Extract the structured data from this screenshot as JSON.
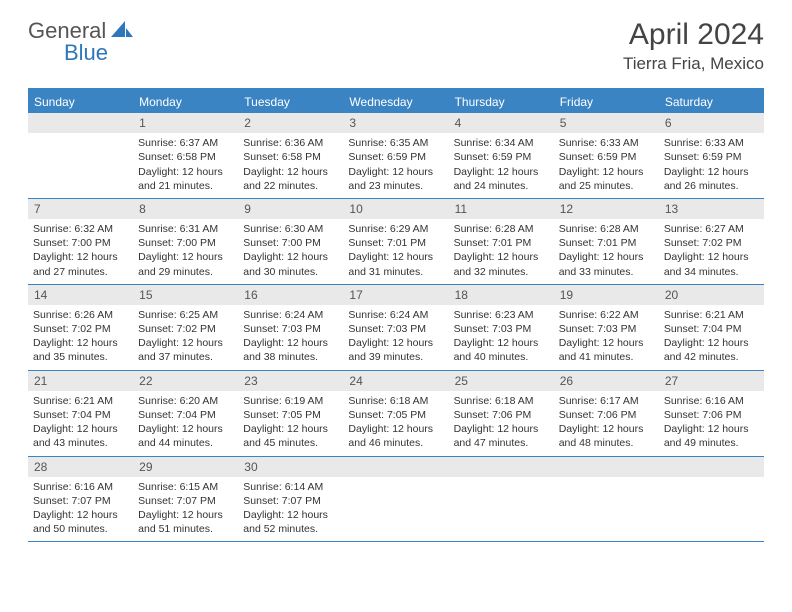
{
  "logo": {
    "text_general": "General",
    "text_blue": "Blue"
  },
  "title": "April 2024",
  "location": "Tierra Fria, Mexico",
  "weekdays": [
    "Sunday",
    "Monday",
    "Tuesday",
    "Wednesday",
    "Thursday",
    "Friday",
    "Saturday"
  ],
  "colors": {
    "header_bar": "#3b84c4",
    "daynum_bg": "#e9e9e9",
    "text": "#333333",
    "logo_blue": "#2f77bb"
  },
  "weeks": [
    [
      {
        "num": "",
        "sunrise": "",
        "sunset": "",
        "daylight": ""
      },
      {
        "num": "1",
        "sunrise": "Sunrise: 6:37 AM",
        "sunset": "Sunset: 6:58 PM",
        "daylight": "Daylight: 12 hours and 21 minutes."
      },
      {
        "num": "2",
        "sunrise": "Sunrise: 6:36 AM",
        "sunset": "Sunset: 6:58 PM",
        "daylight": "Daylight: 12 hours and 22 minutes."
      },
      {
        "num": "3",
        "sunrise": "Sunrise: 6:35 AM",
        "sunset": "Sunset: 6:59 PM",
        "daylight": "Daylight: 12 hours and 23 minutes."
      },
      {
        "num": "4",
        "sunrise": "Sunrise: 6:34 AM",
        "sunset": "Sunset: 6:59 PM",
        "daylight": "Daylight: 12 hours and 24 minutes."
      },
      {
        "num": "5",
        "sunrise": "Sunrise: 6:33 AM",
        "sunset": "Sunset: 6:59 PM",
        "daylight": "Daylight: 12 hours and 25 minutes."
      },
      {
        "num": "6",
        "sunrise": "Sunrise: 6:33 AM",
        "sunset": "Sunset: 6:59 PM",
        "daylight": "Daylight: 12 hours and 26 minutes."
      }
    ],
    [
      {
        "num": "7",
        "sunrise": "Sunrise: 6:32 AM",
        "sunset": "Sunset: 7:00 PM",
        "daylight": "Daylight: 12 hours and 27 minutes."
      },
      {
        "num": "8",
        "sunrise": "Sunrise: 6:31 AM",
        "sunset": "Sunset: 7:00 PM",
        "daylight": "Daylight: 12 hours and 29 minutes."
      },
      {
        "num": "9",
        "sunrise": "Sunrise: 6:30 AM",
        "sunset": "Sunset: 7:00 PM",
        "daylight": "Daylight: 12 hours and 30 minutes."
      },
      {
        "num": "10",
        "sunrise": "Sunrise: 6:29 AM",
        "sunset": "Sunset: 7:01 PM",
        "daylight": "Daylight: 12 hours and 31 minutes."
      },
      {
        "num": "11",
        "sunrise": "Sunrise: 6:28 AM",
        "sunset": "Sunset: 7:01 PM",
        "daylight": "Daylight: 12 hours and 32 minutes."
      },
      {
        "num": "12",
        "sunrise": "Sunrise: 6:28 AM",
        "sunset": "Sunset: 7:01 PM",
        "daylight": "Daylight: 12 hours and 33 minutes."
      },
      {
        "num": "13",
        "sunrise": "Sunrise: 6:27 AM",
        "sunset": "Sunset: 7:02 PM",
        "daylight": "Daylight: 12 hours and 34 minutes."
      }
    ],
    [
      {
        "num": "14",
        "sunrise": "Sunrise: 6:26 AM",
        "sunset": "Sunset: 7:02 PM",
        "daylight": "Daylight: 12 hours and 35 minutes."
      },
      {
        "num": "15",
        "sunrise": "Sunrise: 6:25 AM",
        "sunset": "Sunset: 7:02 PM",
        "daylight": "Daylight: 12 hours and 37 minutes."
      },
      {
        "num": "16",
        "sunrise": "Sunrise: 6:24 AM",
        "sunset": "Sunset: 7:03 PM",
        "daylight": "Daylight: 12 hours and 38 minutes."
      },
      {
        "num": "17",
        "sunrise": "Sunrise: 6:24 AM",
        "sunset": "Sunset: 7:03 PM",
        "daylight": "Daylight: 12 hours and 39 minutes."
      },
      {
        "num": "18",
        "sunrise": "Sunrise: 6:23 AM",
        "sunset": "Sunset: 7:03 PM",
        "daylight": "Daylight: 12 hours and 40 minutes."
      },
      {
        "num": "19",
        "sunrise": "Sunrise: 6:22 AM",
        "sunset": "Sunset: 7:03 PM",
        "daylight": "Daylight: 12 hours and 41 minutes."
      },
      {
        "num": "20",
        "sunrise": "Sunrise: 6:21 AM",
        "sunset": "Sunset: 7:04 PM",
        "daylight": "Daylight: 12 hours and 42 minutes."
      }
    ],
    [
      {
        "num": "21",
        "sunrise": "Sunrise: 6:21 AM",
        "sunset": "Sunset: 7:04 PM",
        "daylight": "Daylight: 12 hours and 43 minutes."
      },
      {
        "num": "22",
        "sunrise": "Sunrise: 6:20 AM",
        "sunset": "Sunset: 7:04 PM",
        "daylight": "Daylight: 12 hours and 44 minutes."
      },
      {
        "num": "23",
        "sunrise": "Sunrise: 6:19 AM",
        "sunset": "Sunset: 7:05 PM",
        "daylight": "Daylight: 12 hours and 45 minutes."
      },
      {
        "num": "24",
        "sunrise": "Sunrise: 6:18 AM",
        "sunset": "Sunset: 7:05 PM",
        "daylight": "Daylight: 12 hours and 46 minutes."
      },
      {
        "num": "25",
        "sunrise": "Sunrise: 6:18 AM",
        "sunset": "Sunset: 7:06 PM",
        "daylight": "Daylight: 12 hours and 47 minutes."
      },
      {
        "num": "26",
        "sunrise": "Sunrise: 6:17 AM",
        "sunset": "Sunset: 7:06 PM",
        "daylight": "Daylight: 12 hours and 48 minutes."
      },
      {
        "num": "27",
        "sunrise": "Sunrise: 6:16 AM",
        "sunset": "Sunset: 7:06 PM",
        "daylight": "Daylight: 12 hours and 49 minutes."
      }
    ],
    [
      {
        "num": "28",
        "sunrise": "Sunrise: 6:16 AM",
        "sunset": "Sunset: 7:07 PM",
        "daylight": "Daylight: 12 hours and 50 minutes."
      },
      {
        "num": "29",
        "sunrise": "Sunrise: 6:15 AM",
        "sunset": "Sunset: 7:07 PM",
        "daylight": "Daylight: 12 hours and 51 minutes."
      },
      {
        "num": "30",
        "sunrise": "Sunrise: 6:14 AM",
        "sunset": "Sunset: 7:07 PM",
        "daylight": "Daylight: 12 hours and 52 minutes."
      },
      {
        "num": "",
        "sunrise": "",
        "sunset": "",
        "daylight": ""
      },
      {
        "num": "",
        "sunrise": "",
        "sunset": "",
        "daylight": ""
      },
      {
        "num": "",
        "sunrise": "",
        "sunset": "",
        "daylight": ""
      },
      {
        "num": "",
        "sunrise": "",
        "sunset": "",
        "daylight": ""
      }
    ]
  ]
}
